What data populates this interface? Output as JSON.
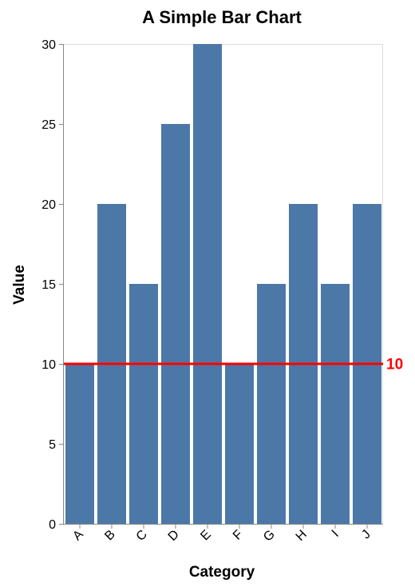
{
  "chart_data": {
    "type": "bar",
    "title": "A Simple Bar Chart",
    "xlabel": "Category",
    "ylabel": "Value",
    "categories": [
      "A",
      "B",
      "C",
      "D",
      "E",
      "F",
      "G",
      "H",
      "I",
      "J"
    ],
    "values": [
      10,
      20,
      15,
      25,
      30,
      10,
      15,
      20,
      15,
      20
    ],
    "ylim": [
      0,
      30
    ],
    "yticks": [
      0,
      5,
      10,
      15,
      20,
      25,
      30
    ],
    "grid": false,
    "bar_color": "#4c78a8",
    "reference_line": {
      "value": 10,
      "label": "10",
      "color": "#ff0000"
    }
  }
}
